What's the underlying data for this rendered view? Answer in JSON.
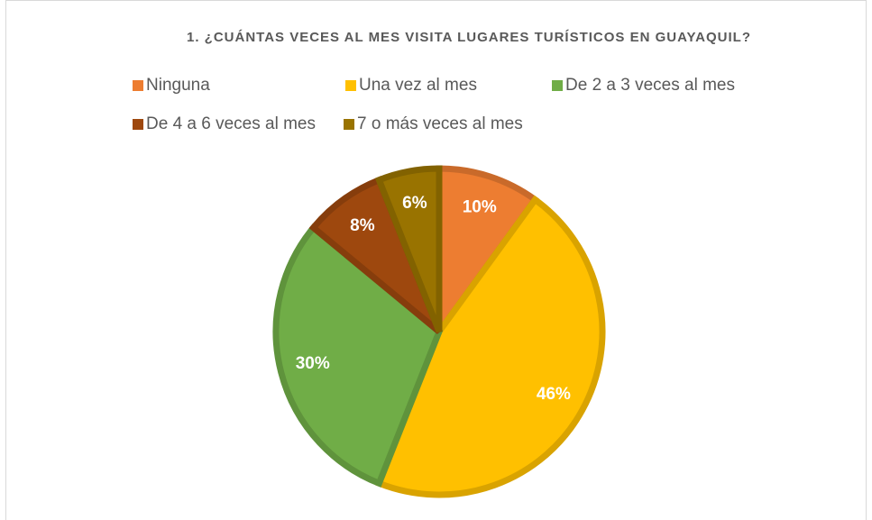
{
  "chart_data": {
    "type": "pie",
    "title": "1. ¿CUÁNTAS VECES AL MES VISITA LUGARES TURÍSTICOS EN GUAYAQUIL?",
    "categories": [
      "Ninguna",
      "Una vez al mes",
      "De 2 a 3 veces al mes",
      "De 4 a 6 veces al mes",
      "7 o más veces al mes"
    ],
    "values": [
      10,
      46,
      30,
      8,
      6
    ],
    "value_labels": [
      "10%",
      "46%",
      "30%",
      "8%",
      "6%"
    ],
    "colors": [
      "#ED7D31",
      "#FFC000",
      "#70AD47",
      "#9E480E",
      "#997300"
    ]
  }
}
